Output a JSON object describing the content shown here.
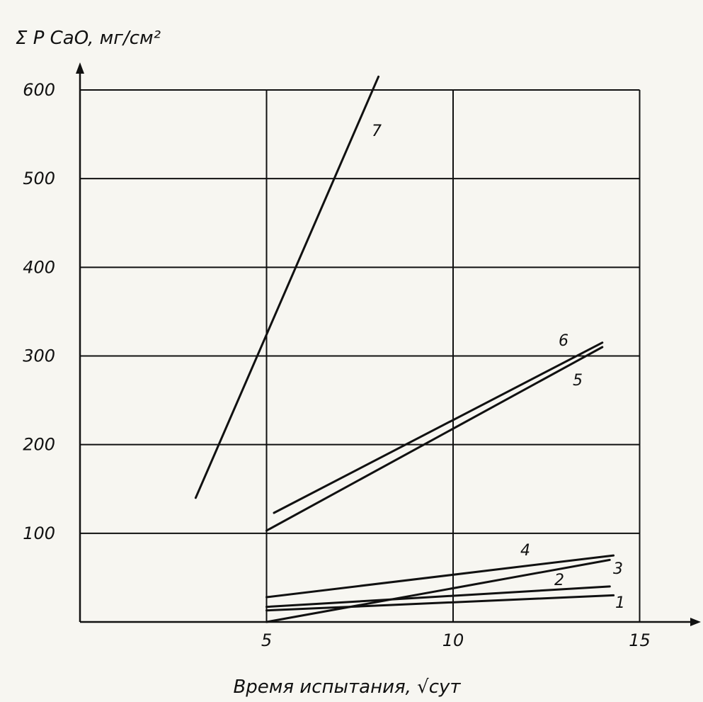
{
  "chart_data": {
    "type": "line",
    "ylabel": "Σ P CaO, мг/см²",
    "xlabel": "Время испытания, √сут",
    "xlim": [
      0,
      15
    ],
    "ylim": [
      0,
      600
    ],
    "x_ticks": [
      "5",
      "10",
      "15"
    ],
    "y_ticks": [
      "100",
      "200",
      "300",
      "400",
      "500",
      "600"
    ],
    "grid": true,
    "series": [
      {
        "name": "1",
        "x": [
          5,
          14.3
        ],
        "y": [
          13,
          30
        ]
      },
      {
        "name": "2",
        "x": [
          5,
          14.2
        ],
        "y": [
          17,
          40
        ]
      },
      {
        "name": "3",
        "x": [
          5,
          14.2
        ],
        "y": [
          0,
          70
        ]
      },
      {
        "name": "4",
        "x": [
          5,
          14.3
        ],
        "y": [
          28,
          75
        ]
      },
      {
        "name": "5",
        "x": [
          5,
          14.0
        ],
        "y": [
          103,
          310
        ]
      },
      {
        "name": "6",
        "x": [
          5.2,
          14.0
        ],
        "y": [
          123,
          315
        ]
      },
      {
        "name": "7",
        "x": [
          3.1,
          8.0
        ],
        "y": [
          140,
          615
        ]
      }
    ],
    "colors": {
      "ink": "#111111",
      "paper": "#f7f6f1"
    }
  }
}
